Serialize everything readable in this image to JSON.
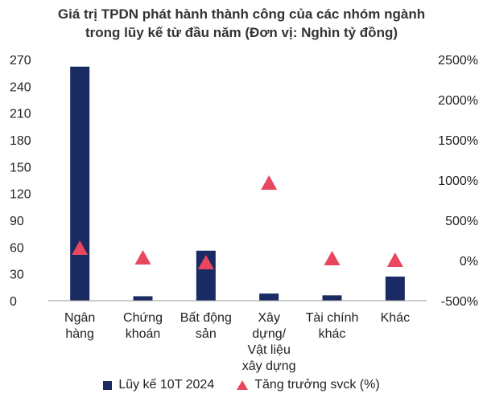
{
  "colors": {
    "bar": "#1a2a63",
    "marker": "#e8475d",
    "axis": "#9a9a9a"
  },
  "chart_data": {
    "type": "bar",
    "title_lines": [
      "Giá trị TPDN phát hành thành công của các nhóm ngành",
      "trong lũy kế từ đầu năm (Đơn vị: Nghìn tỷ đồng)"
    ],
    "categories": [
      [
        "Ngân",
        "hàng"
      ],
      [
        "Chứng",
        "khoán"
      ],
      [
        "Bất động",
        "sản"
      ],
      [
        "Xây",
        "dựng/",
        "Vật liệu",
        "xây dựng"
      ],
      [
        "Tài chính",
        "khác"
      ],
      [
        "Khác"
      ]
    ],
    "series": [
      {
        "name": "Lũy kế 10T 2024",
        "type": "bar",
        "axis": "left",
        "values": [
          262,
          5,
          56,
          8,
          6,
          27
        ]
      },
      {
        "name": "Tăng trưởng svck (%)",
        "type": "scatter",
        "marker": "triangle",
        "axis": "right",
        "values": [
          150,
          30,
          -30,
          960,
          20,
          0
        ]
      }
    ],
    "y_left": {
      "range": [
        0,
        270
      ],
      "ticks": [
        "0",
        "30",
        "60",
        "90",
        "120",
        "150",
        "180",
        "210",
        "240",
        "270"
      ]
    },
    "y_right": {
      "range": [
        -500,
        2500
      ],
      "ticks": [
        "-500%",
        "0%",
        "500%",
        "1000%",
        "1500%",
        "2000%",
        "2500%"
      ]
    },
    "grid": false,
    "legend_position": "bottom"
  }
}
